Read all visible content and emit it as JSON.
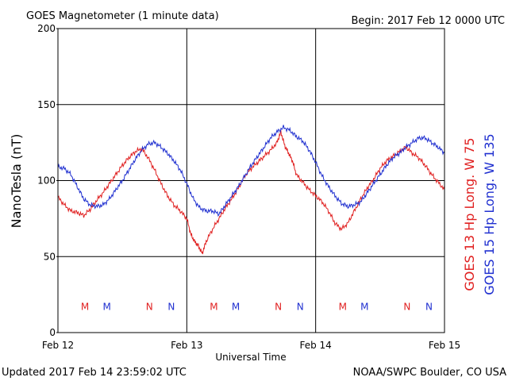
{
  "chart_data": {
    "type": "line",
    "title": "GOES Magnetometer (1 minute data)",
    "begin_label": "Begin:  2017 Feb 12 0000 UTC",
    "xlabel": "Universal Time",
    "ylabel": "NanoTesla (nT)",
    "ylim": [
      0,
      200
    ],
    "xlim": [
      0,
      3
    ],
    "yticks": [
      0,
      50,
      100,
      150,
      200
    ],
    "xticks": [
      {
        "x": 0,
        "label": "Feb 12"
      },
      {
        "x": 1,
        "label": "Feb 13"
      },
      {
        "x": 2,
        "label": "Feb 14"
      },
      {
        "x": 3,
        "label": "Feb 15"
      }
    ],
    "grid": true,
    "footer_left": "Updated 2017 Feb 14 23:59:02 UTC",
    "footer_right": "NOAA/SWPC Boulder, CO USA",
    "series": [
      {
        "name": "GOES 13 Hp  Long. W 75",
        "color": "#e02020",
        "x": [
          0,
          0.05,
          0.1,
          0.15,
          0.2,
          0.25,
          0.3,
          0.35,
          0.4,
          0.45,
          0.5,
          0.55,
          0.6,
          0.65,
          0.7,
          0.75,
          0.8,
          0.85,
          0.9,
          0.95,
          1.0,
          1.03,
          1.06,
          1.09,
          1.12,
          1.15,
          1.2,
          1.25,
          1.3,
          1.35,
          1.4,
          1.45,
          1.5,
          1.55,
          1.6,
          1.65,
          1.7,
          1.73,
          1.76,
          1.79,
          1.82,
          1.85,
          1.9,
          1.95,
          2.0,
          2.05,
          2.1,
          2.15,
          2.2,
          2.25,
          2.3,
          2.35,
          2.4,
          2.45,
          2.5,
          2.55,
          2.6,
          2.65,
          2.7,
          2.75,
          2.8,
          2.85,
          2.9,
          2.95,
          3.0
        ],
        "values": [
          89,
          84,
          80,
          79,
          77,
          81,
          87,
          92,
          98,
          104,
          110,
          115,
          119,
          121,
          115,
          107,
          98,
          90,
          84,
          80,
          75,
          65,
          60,
          57,
          52,
          60,
          68,
          75,
          82,
          88,
          95,
          103,
          108,
          112,
          116,
          120,
          125,
          132,
          123,
          118,
          113,
          104,
          99,
          94,
          90,
          86,
          80,
          72,
          68,
          72,
          80,
          88,
          95,
          101,
          108,
          113,
          116,
          119,
          122,
          118,
          115,
          110,
          104,
          99,
          94
        ]
      },
      {
        "name": "GOES 15 Hp  Long. W 135",
        "color": "#2030d0",
        "x": [
          0,
          0.05,
          0.1,
          0.15,
          0.2,
          0.25,
          0.3,
          0.35,
          0.4,
          0.45,
          0.5,
          0.55,
          0.6,
          0.65,
          0.7,
          0.75,
          0.8,
          0.85,
          0.9,
          0.95,
          1.0,
          1.05,
          1.1,
          1.15,
          1.2,
          1.25,
          1.3,
          1.35,
          1.4,
          1.45,
          1.5,
          1.55,
          1.6,
          1.65,
          1.7,
          1.75,
          1.8,
          1.85,
          1.9,
          1.95,
          2.0,
          2.05,
          2.1,
          2.15,
          2.2,
          2.25,
          2.3,
          2.35,
          2.4,
          2.45,
          2.5,
          2.55,
          2.6,
          2.65,
          2.7,
          2.75,
          2.8,
          2.85,
          2.9,
          2.95,
          3.0
        ],
        "values": [
          109,
          108,
          104,
          96,
          88,
          84,
          83,
          84,
          88,
          94,
          100,
          107,
          114,
          120,
          124,
          125,
          122,
          118,
          113,
          107,
          98,
          88,
          82,
          80,
          80,
          78,
          84,
          90,
          96,
          103,
          110,
          116,
          122,
          128,
          132,
          135,
          133,
          129,
          126,
          120,
          112,
          103,
          96,
          90,
          85,
          83,
          84,
          86,
          92,
          98,
          104,
          110,
          115,
          118,
          122,
          125,
          128,
          128,
          125,
          122,
          118
        ]
      }
    ],
    "annotations": [
      {
        "text": "M",
        "x": 0.21,
        "series": 0
      },
      {
        "text": "M",
        "x": 0.38,
        "series": 1
      },
      {
        "text": "N",
        "x": 0.71,
        "series": 0
      },
      {
        "text": "N",
        "x": 0.88,
        "series": 1
      },
      {
        "text": "M",
        "x": 1.21,
        "series": 0
      },
      {
        "text": "M",
        "x": 1.38,
        "series": 1
      },
      {
        "text": "N",
        "x": 1.71,
        "series": 0
      },
      {
        "text": "N",
        "x": 1.88,
        "series": 1
      },
      {
        "text": "M",
        "x": 2.21,
        "series": 0
      },
      {
        "text": "M",
        "x": 2.38,
        "series": 1
      },
      {
        "text": "N",
        "x": 2.71,
        "series": 0
      },
      {
        "text": "N",
        "x": 2.88,
        "series": 1
      }
    ],
    "annotation_y": 17
  }
}
